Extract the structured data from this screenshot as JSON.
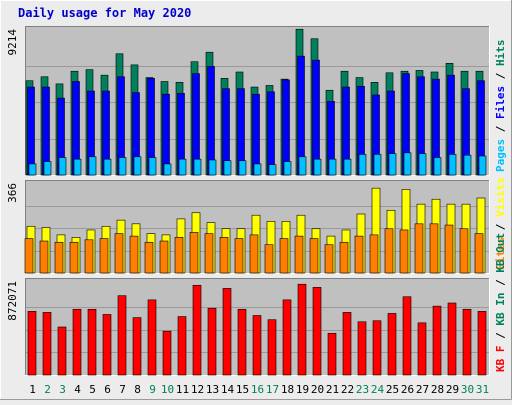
{
  "title": "Daily usage for May 2020",
  "colors": {
    "title": "#0000cc",
    "frame": "#c0c0c0",
    "hits": "#00805c",
    "files": "#0000ff",
    "pages": "#00c0ff",
    "visits": "#ffff00",
    "sites": "#ff8000",
    "kb": "#ff0000",
    "weekend": "#00805c",
    "weekday": "#000000"
  },
  "chart_data": [
    {
      "type": "bar",
      "name": "hits-files-pages",
      "y_max_label": "9214",
      "ylim": [
        0,
        9214
      ],
      "legend": [
        {
          "label": "Pages",
          "color": "#00c0ff"
        },
        {
          "label": "Files",
          "color": "#0000ff"
        },
        {
          "label": "Hits",
          "color": "#00805c"
        }
      ],
      "legend_sep": " / ",
      "series": [
        {
          "key": "hits",
          "values": [
            5950,
            6200,
            5750,
            6550,
            6650,
            6300,
            7650,
            6950,
            6150,
            5900,
            5850,
            7150,
            7750,
            6100,
            6500,
            5550,
            5650,
            6050,
            9200,
            8600,
            5350,
            6550,
            6150,
            5850,
            6450,
            6550,
            6600,
            6500,
            7050,
            6550,
            6550
          ]
        },
        {
          "key": "files",
          "values": [
            5550,
            5550,
            4850,
            5900,
            5300,
            5300,
            6200,
            5200,
            6100,
            5100,
            5150,
            6400,
            6850,
            5450,
            5450,
            5100,
            5250,
            6000,
            7500,
            7250,
            4650,
            5550,
            5600,
            5050,
            5300,
            6400,
            6200,
            6050,
            6300,
            5450,
            5950
          ]
        },
        {
          "key": "pages",
          "values": [
            700,
            850,
            1100,
            1000,
            1150,
            1000,
            1100,
            1150,
            1100,
            700,
            1000,
            1000,
            950,
            900,
            900,
            700,
            650,
            850,
            1150,
            1000,
            1000,
            1000,
            1300,
            1300,
            1350,
            1400,
            1350,
            1100,
            1300,
            1250,
            1200
          ]
        }
      ]
    },
    {
      "type": "bar",
      "name": "visits-sites",
      "y_max_label": "366",
      "ylim": [
        0,
        366
      ],
      "legend": [
        {
          "label": "Sites",
          "color": "#ff8000"
        },
        {
          "label": "Visits",
          "color": "#ffff00"
        }
      ],
      "legend_sep": " / ",
      "series": [
        {
          "key": "visits",
          "values": [
            190,
            185,
            155,
            145,
            175,
            190,
            215,
            200,
            160,
            155,
            220,
            245,
            205,
            180,
            180,
            235,
            210,
            210,
            235,
            180,
            150,
            175,
            240,
            345,
            255,
            340,
            280,
            300,
            280,
            280,
            305
          ]
        },
        {
          "key": "sites",
          "values": [
            140,
            130,
            125,
            125,
            135,
            140,
            160,
            150,
            125,
            130,
            145,
            165,
            160,
            145,
            140,
            155,
            115,
            140,
            150,
            140,
            115,
            125,
            150,
            155,
            180,
            175,
            200,
            200,
            195,
            180,
            160
          ]
        }
      ]
    },
    {
      "type": "bar",
      "name": "kb",
      "y_max_label": "872071",
      "ylim": [
        0,
        872071
      ],
      "legend": [
        {
          "label": "KB F",
          "color": "#ff0000"
        },
        {
          "label": "KB In",
          "color": "#00805c"
        },
        {
          "label": "KB Out",
          "color": "#00805c"
        }
      ],
      "legend_sep": " / ",
      "categories": [
        "1",
        "2",
        "3",
        "4",
        "5",
        "6",
        "7",
        "8",
        "9",
        "10",
        "11",
        "12",
        "13",
        "14",
        "15",
        "16",
        "17",
        "18",
        "19",
        "20",
        "21",
        "22",
        "23",
        "24",
        "25",
        "26",
        "27",
        "28",
        "29",
        "30",
        "31"
      ],
      "weekend_days": [
        2,
        3,
        9,
        10,
        16,
        17,
        23,
        24,
        30,
        31
      ],
      "series": [
        {
          "key": "kb",
          "values": [
            610000,
            600000,
            460000,
            630000,
            630000,
            580000,
            760000,
            550000,
            720000,
            420000,
            560000,
            860000,
            640000,
            830000,
            630000,
            570000,
            530000,
            720000,
            870000,
            840000,
            400000,
            600000,
            510000,
            520000,
            590000,
            750000,
            500000,
            660000,
            690000,
            630000,
            610000
          ]
        }
      ]
    }
  ]
}
